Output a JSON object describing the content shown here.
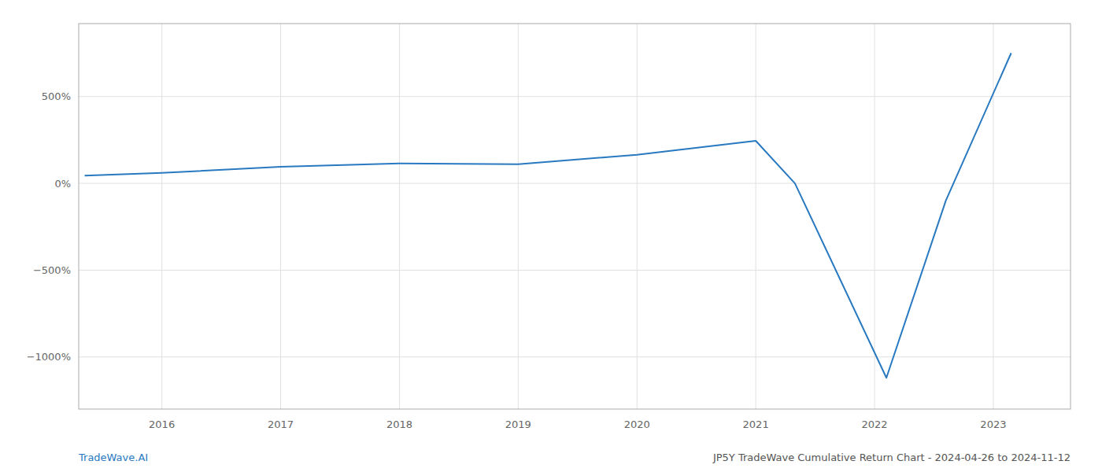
{
  "chart_data": {
    "type": "line",
    "x": [
      2015.35,
      2016.0,
      2017.0,
      2018.0,
      2019.0,
      2020.0,
      2021.0,
      2021.33,
      2022.1,
      2022.6,
      2023.15
    ],
    "values": [
      45,
      60,
      95,
      115,
      110,
      165,
      245,
      0,
      -1120,
      -100,
      750
    ],
    "color": "#2979C1",
    "xlim": [
      2015.3,
      2023.65
    ],
    "ylim": [
      -1300,
      920
    ],
    "xticks": [
      2016,
      2017,
      2018,
      2019,
      2020,
      2021,
      2022,
      2023
    ],
    "yticks": [
      {
        "value": -1000,
        "label": "−1000%"
      },
      {
        "value": -500,
        "label": "−500%"
      },
      {
        "value": 0,
        "label": "0%"
      },
      {
        "value": 500,
        "label": "500%"
      }
    ],
    "grid": true,
    "annotations": [
      {
        "text": "TradeWave.AI",
        "color": "#2979C1"
      },
      {
        "text": "JP5Y TradeWave Cumulative Return Chart - 2024-04-26 to 2024-11-12",
        "color": "#555555"
      }
    ]
  }
}
